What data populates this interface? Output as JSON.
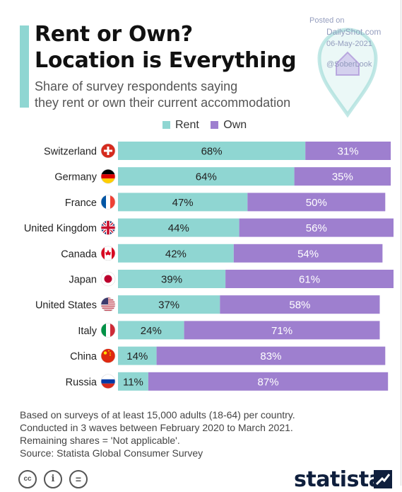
{
  "title_line1": "Rent or Own?",
  "title_line2": "Location is Everything",
  "subtitle_line1": "Share of survey respondents saying",
  "subtitle_line2": "they rent or own their current accommodation",
  "watermark": {
    "posted": "Posted on",
    "site": "DailyShot.com",
    "date": "06-May-2021",
    "handle": "@SoberLook"
  },
  "colors": {
    "rent": "#8fd6d2",
    "own": "#9e7fcf",
    "accent": "#8fd6d2"
  },
  "notes": [
    "Based on surveys of at least 15,000 adults (18-64) per country.",
    "Conducted in 3 waves between February 2020 to March 2021.",
    "Remaining shares = 'Not applicable'.",
    "Source: Statista Global Consumer Survey"
  ],
  "footer": {
    "cc1": "cc",
    "cc2": "i",
    "cc3": "=",
    "logo": "statista"
  },
  "chart_data": {
    "type": "bar",
    "orientation": "horizontal",
    "stacked": true,
    "categories": [
      "Switzerland",
      "Germany",
      "France",
      "United Kingdom",
      "Canada",
      "Japan",
      "United States",
      "Italy",
      "China",
      "Russia"
    ],
    "series": [
      {
        "name": "Rent",
        "values": [
          68,
          64,
          47,
          44,
          42,
          39,
          37,
          24,
          14,
          11
        ]
      },
      {
        "name": "Own",
        "values": [
          31,
          35,
          50,
          56,
          54,
          61,
          58,
          71,
          83,
          87
        ]
      }
    ],
    "value_labels": {
      "Rent": [
        "68%",
        "64%",
        "47%",
        "44%",
        "42%",
        "39%",
        "37%",
        "24%",
        "14%",
        "11%"
      ],
      "Own": [
        "31%",
        "35%",
        "50%",
        "56%",
        "54%",
        "61%",
        "58%",
        "71%",
        "83%",
        "87%"
      ]
    },
    "flags": [
      "switzerland-flag-icon",
      "germany-flag-icon",
      "france-flag-icon",
      "uk-flag-icon",
      "canada-flag-icon",
      "japan-flag-icon",
      "usa-flag-icon",
      "italy-flag-icon",
      "china-flag-icon",
      "russia-flag-icon"
    ],
    "xlim": [
      0,
      100
    ],
    "legend_position": "top-center",
    "grid": false
  }
}
